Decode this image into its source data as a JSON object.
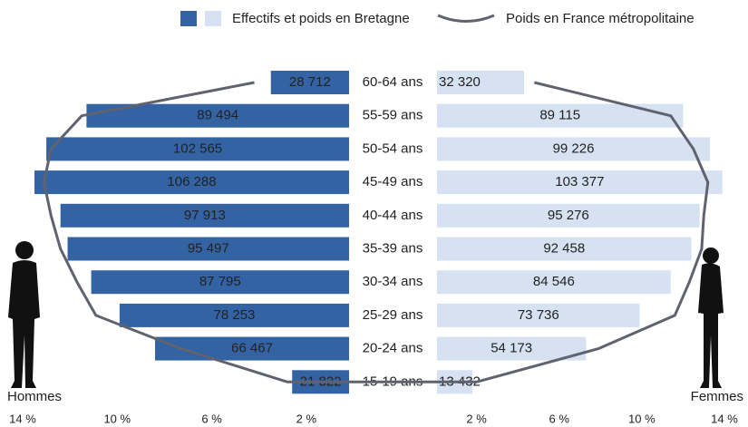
{
  "chart_data": {
    "type": "pyramid",
    "legend": [
      "Effectifs et poids en Bretagne",
      "Poids en France métropolitaine"
    ],
    "categories": [
      "60-64 ans",
      "55-59 ans",
      "50-54 ans",
      "45-49 ans",
      "40-44 ans",
      "35-39 ans",
      "30-34 ans",
      "25-29 ans",
      "20-24 ans",
      "15-19 ans"
    ],
    "france_color": "#60636f",
    "series": [
      {
        "name": "Hommes",
        "color": "#3463a3",
        "label_color": "#ffffff",
        "values": [
          3.5,
          11.3,
          13.0,
          13.5,
          12.4,
          12.1,
          11.1,
          9.9,
          8.4,
          2.6
        ],
        "counts": [
          28712,
          89494,
          102565,
          106288,
          97913,
          95497,
          87795,
          78253,
          66467,
          21822
        ],
        "count_labels": [
          "28 712",
          "89 494",
          "102 565",
          "106 288",
          "97 913",
          "95 497",
          "87 795",
          "78 253",
          "66 467",
          "21 822"
        ],
        "france": [
          4.2,
          11.5,
          12.8,
          13.1,
          12.8,
          12.4,
          11.7,
          10.9,
          7.3,
          2.8
        ]
      },
      {
        "name": "Femmes",
        "color": "#d6e2f1",
        "label_color": "#1a1a1a",
        "values": [
          4.3,
          12.0,
          13.3,
          13.9,
          12.8,
          12.4,
          11.4,
          9.9,
          7.3,
          1.8
        ],
        "counts": [
          32320,
          89115,
          99226,
          103377,
          95276,
          92458,
          84546,
          73736,
          54173,
          13432
        ],
        "count_labels": [
          "32 320",
          "89 115",
          "99 226",
          "103 377",
          "95 276",
          "92 458",
          "84 546",
          "73 736",
          "54 173",
          "13 432"
        ],
        "france": [
          4.8,
          11.4,
          12.5,
          13.2,
          13.0,
          12.9,
          12.3,
          11.6,
          7.9,
          2.0
        ]
      }
    ],
    "xlim": [
      0,
      14
    ],
    "xticks": [
      {
        "value": 2,
        "label": "2 %"
      },
      {
        "value": 6,
        "label": "6 %"
      },
      {
        "value": 10,
        "label": "10 %"
      },
      {
        "value": 14,
        "label": "14 %"
      }
    ]
  }
}
